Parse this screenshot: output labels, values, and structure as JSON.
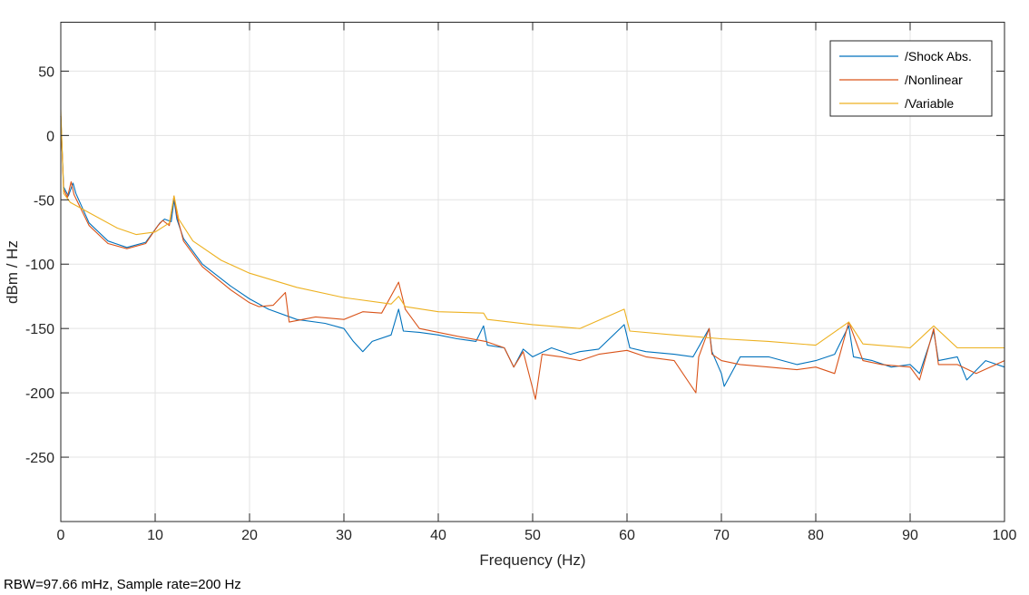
{
  "chart_data": {
    "type": "line",
    "title": "",
    "xlabel": "Frequency (Hz)",
    "ylabel": "dBm / Hz",
    "xlim": [
      0,
      100
    ],
    "ylim": [
      -300,
      88
    ],
    "xticks": [
      0,
      10,
      20,
      30,
      40,
      50,
      60,
      70,
      80,
      90,
      100
    ],
    "yticks": [
      -250,
      -200,
      -150,
      -100,
      -50,
      0,
      50
    ],
    "grid": true,
    "legend_position": "top-right",
    "footer": "RBW=97.66 mHz, Sample rate=200 Hz",
    "series": [
      {
        "name": "/Shock Abs.",
        "color": "#0072BD",
        "x": [
          0,
          0.3,
          0.8,
          1.3,
          1.6,
          3,
          5,
          7,
          9,
          10.5,
          11,
          11.7,
          12,
          12.3,
          13,
          15,
          18,
          20,
          22,
          25,
          28,
          30,
          31,
          32,
          33,
          35,
          35.8,
          36.3,
          38,
          40,
          42,
          44,
          44.8,
          45.2,
          47,
          48,
          49,
          50,
          52,
          54,
          55,
          57,
          59.7,
          60.3,
          62,
          65,
          67,
          68.7,
          69,
          70,
          70.3,
          72,
          75,
          78,
          80,
          82,
          83.5,
          84,
          86,
          88,
          90,
          91,
          92.5,
          93,
          95,
          96,
          98,
          100
        ],
        "y": [
          15,
          -40,
          -47,
          -37,
          -45,
          -68,
          -82,
          -87,
          -83,
          -68,
          -65,
          -67,
          -50,
          -65,
          -80,
          -100,
          -117,
          -127,
          -135,
          -143,
          -146,
          -150,
          -160,
          -168,
          -160,
          -155,
          -135,
          -152,
          -153,
          -155,
          -158,
          -160,
          -148,
          -163,
          -165,
          -180,
          -166,
          -172,
          -165,
          -170,
          -168,
          -166,
          -147,
          -165,
          -168,
          -170,
          -172,
          -150,
          -168,
          -185,
          -195,
          -172,
          -172,
          -178,
          -175,
          -170,
          -148,
          -172,
          -175,
          -180,
          -178,
          -185,
          -152,
          -175,
          -172,
          -190,
          -175,
          -180
        ]
      },
      {
        "name": "/Nonlinear",
        "color": "#D95319",
        "x": [
          0,
          0.3,
          0.7,
          1.1,
          1.4,
          3,
          5,
          7,
          9,
          10.3,
          10.8,
          11.5,
          12,
          12.3,
          13,
          15,
          18,
          20,
          21,
          22.5,
          23.8,
          24.2,
          27,
          30,
          32,
          34,
          35.8,
          36.5,
          38,
          40,
          42,
          45,
          47,
          48,
          49,
          50.3,
          51,
          53,
          55,
          57,
          60,
          62,
          65,
          67.3,
          67.6,
          68.7,
          69,
          70,
          72,
          75,
          78,
          80,
          82,
          83.5,
          85,
          87,
          90,
          91,
          92.5,
          93,
          95,
          97,
          100
        ],
        "y": [
          15,
          -42,
          -48,
          -36,
          -46,
          -70,
          -84,
          -88,
          -84,
          -70,
          -66,
          -70,
          -47,
          -62,
          -82,
          -102,
          -120,
          -130,
          -133,
          -132,
          -122,
          -145,
          -141,
          -143,
          -137,
          -138,
          -114,
          -135,
          -150,
          -153,
          -156,
          -160,
          -165,
          -180,
          -168,
          -205,
          -170,
          -172,
          -175,
          -170,
          -167,
          -172,
          -175,
          -200,
          -172,
          -150,
          -170,
          -175,
          -178,
          -180,
          -182,
          -180,
          -185,
          -145,
          -175,
          -178,
          -180,
          -190,
          -150,
          -178,
          -178,
          -185,
          -175
        ]
      },
      {
        "name": "/Variable",
        "color": "#EDB120",
        "x": [
          0,
          0.3,
          1,
          3,
          6,
          8,
          10,
          11.5,
          12,
          12.5,
          14,
          17,
          20,
          25,
          30,
          35,
          35.8,
          36.5,
          40,
          44.8,
          45.2,
          50,
          55,
          59.7,
          60.3,
          65,
          70,
          75,
          80,
          83.5,
          85,
          90,
          92.5,
          95,
          100
        ],
        "y": [
          20,
          -45,
          -52,
          -60,
          -72,
          -77,
          -75,
          -68,
          -47,
          -65,
          -82,
          -97,
          -107,
          -118,
          -126,
          -131,
          -125,
          -133,
          -137,
          -138,
          -143,
          -147,
          -150,
          -135,
          -152,
          -155,
          -158,
          -160,
          -163,
          -145,
          -162,
          -165,
          -148,
          -165,
          -165
        ]
      }
    ]
  }
}
